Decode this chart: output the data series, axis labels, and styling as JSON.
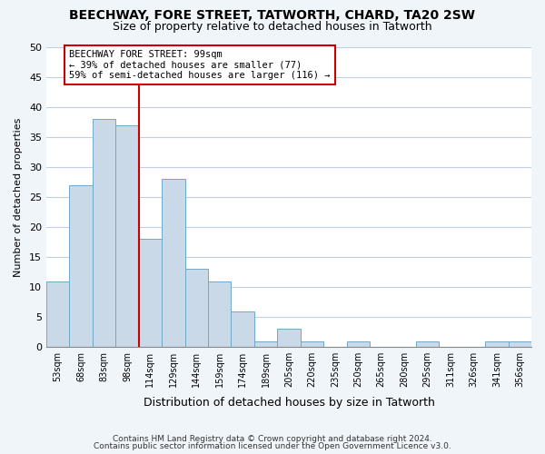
{
  "title": "BEECHWAY, FORE STREET, TATWORTH, CHARD, TA20 2SW",
  "subtitle": "Size of property relative to detached houses in Tatworth",
  "xlabel": "Distribution of detached houses by size in Tatworth",
  "ylabel": "Number of detached properties",
  "bar_labels": [
    "53sqm",
    "68sqm",
    "83sqm",
    "98sqm",
    "114sqm",
    "129sqm",
    "144sqm",
    "159sqm",
    "174sqm",
    "189sqm",
    "205sqm",
    "220sqm",
    "235sqm",
    "250sqm",
    "265sqm",
    "280sqm",
    "295sqm",
    "311sqm",
    "326sqm",
    "341sqm",
    "356sqm"
  ],
  "bar_values": [
    11,
    27,
    38,
    37,
    18,
    28,
    13,
    11,
    6,
    1,
    3,
    1,
    0,
    1,
    0,
    0,
    1,
    0,
    0,
    1,
    1
  ],
  "bar_color": "#c9d9e8",
  "bar_edge_color": "#6fa8c8",
  "grid_color": "#c0d0e0",
  "bg_color": "#ffffff",
  "fig_bg_color": "#f0f5fa",
  "vline_x": 3.5,
  "vline_color": "#cc0000",
  "annotation_text": "BEECHWAY FORE STREET: 99sqm\n← 39% of detached houses are smaller (77)\n59% of semi-detached houses are larger (116) →",
  "annotation_box_color": "#ffffff",
  "annotation_box_edge": "#cc0000",
  "ylim": [
    0,
    50
  ],
  "yticks": [
    0,
    5,
    10,
    15,
    20,
    25,
    30,
    35,
    40,
    45,
    50
  ],
  "footer_line1": "Contains HM Land Registry data © Crown copyright and database right 2024.",
  "footer_line2": "Contains public sector information licensed under the Open Government Licence v3.0."
}
